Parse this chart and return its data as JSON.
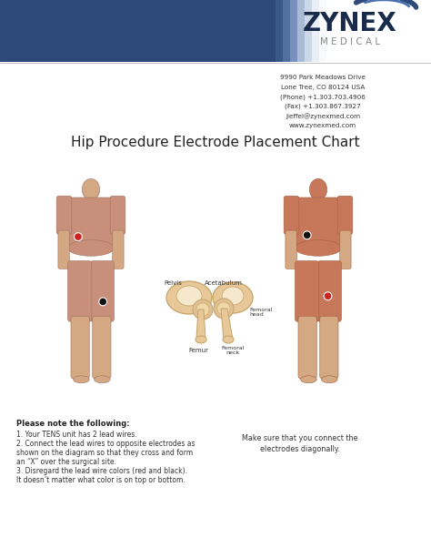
{
  "title": "Hip Procedure Electrode Placement Chart",
  "header_blue": "#2d4a7a",
  "company_name": "ZYNEX",
  "company_sub": "MEDICAL",
  "address_lines": [
    "9990 Park Meadows Drive",
    "Lone Tree, CO 80124 USA",
    "(Phone) +1.303.703.4906",
    "(Fax) +1.303.867.3927",
    "jleffel@zynexmed.com",
    "www.zynexmed.com"
  ],
  "notes_title": "Please note the following:",
  "note1": "Your TENS unit has 2 lead wires.",
  "note2a": "Connect the lead wires to opposite electrodes as",
  "note2b": "    shown on the diagram so that they cross and form",
  "note2c": "    an “X” over the surgical site.",
  "note3a": "Disregard the lead wire colors (red and black).",
  "note3b": "    It doesn’t matter what color is on top or bottom.",
  "side_note1": "Make sure that you connect the",
  "side_note2": "electrodes diagonally.",
  "dot_red": "#cc2222",
  "dot_black": "#111111",
  "bg_color": "#ffffff",
  "text_color": "#333333",
  "skin_front_light": "#d4a882",
  "skin_front_mid": "#c8907a",
  "skin_front_edge": "#a07060",
  "skin_back_mid": "#c8785a",
  "skin_back_edge": "#a06040",
  "bone_fill": "#e8c898",
  "bone_edge": "#c8a870",
  "bone_inner": "#f5e8cc"
}
